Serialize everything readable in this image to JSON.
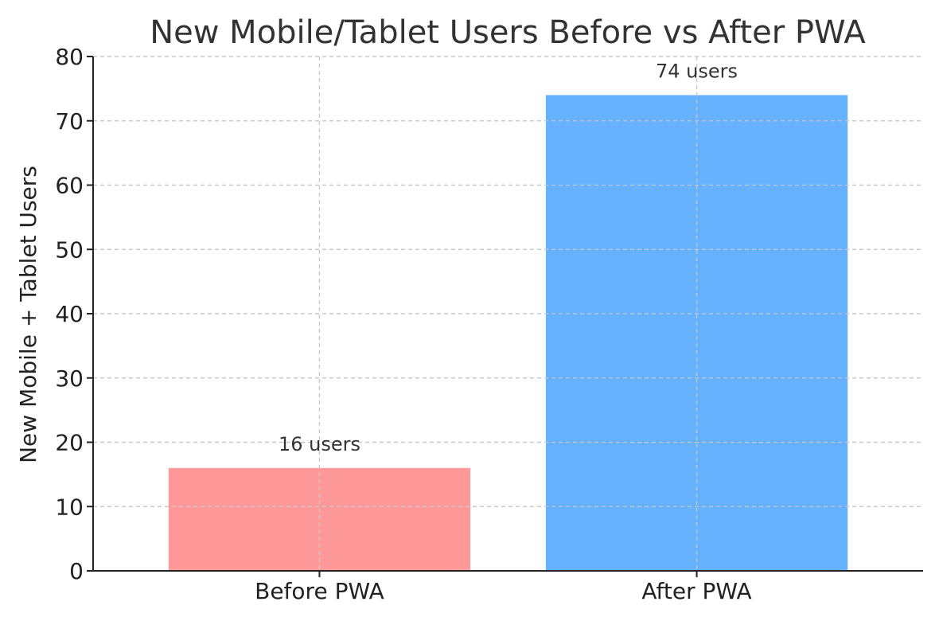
{
  "chart_data": {
    "type": "bar",
    "title": "New Mobile/Tablet Users Before vs After PWA",
    "xlabel": "",
    "ylabel": "New Mobile + Tablet Users",
    "categories": [
      "Before PWA",
      "After PWA"
    ],
    "values": [
      16,
      74
    ],
    "data_labels": [
      "16 users",
      "74 users"
    ],
    "colors": [
      "#ff9999",
      "#66b2ff"
    ],
    "ylim": [
      0,
      80
    ],
    "yticks": [
      0,
      10,
      20,
      30,
      40,
      50,
      60,
      70,
      80
    ],
    "grid": true,
    "legend": "none"
  }
}
